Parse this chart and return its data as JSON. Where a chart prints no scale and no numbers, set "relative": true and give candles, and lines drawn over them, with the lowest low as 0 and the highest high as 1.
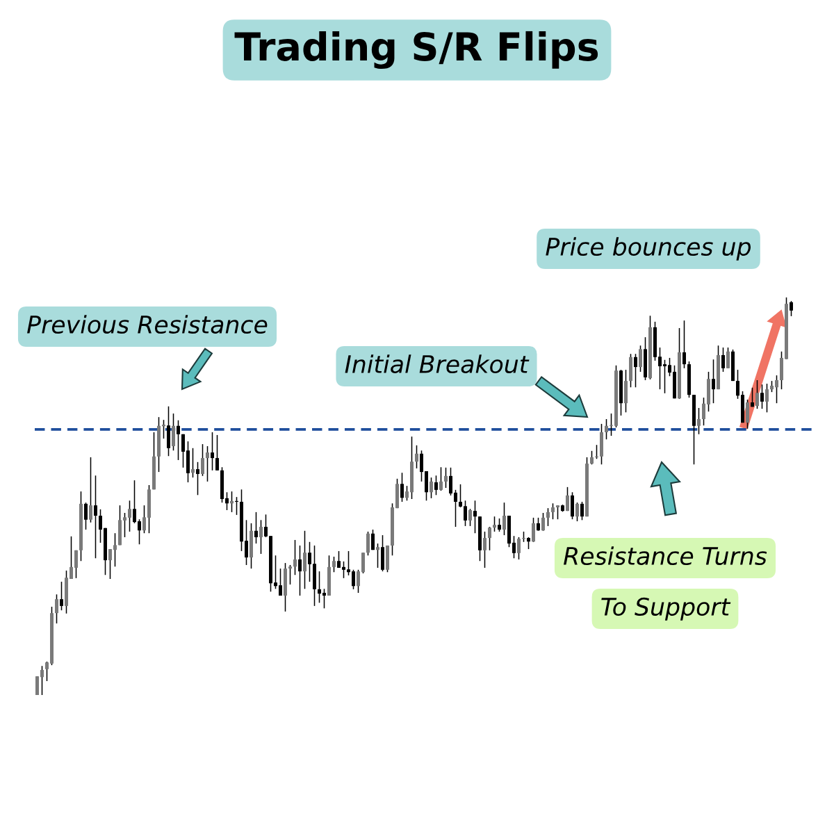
{
  "chart_data": {
    "type": "candlestick",
    "title": "Trading S/R Flips",
    "relative": true,
    "annotations": [
      "Previous Resistance",
      "Initial Breakout",
      "Price bounces up",
      "Resistance Turns",
      "To Support"
    ],
    "ref_lines": [
      {
        "axis": "y",
        "value": 0.668,
        "color": "#1f4e9c",
        "line_style": "dashed"
      }
    ],
    "categories": [
      null,
      null,
      null,
      null,
      null,
      null,
      null,
      null,
      null,
      null,
      null,
      null,
      null,
      null,
      null,
      null,
      null,
      null,
      null,
      null,
      null,
      null,
      null,
      null,
      null,
      null,
      null,
      null,
      null,
      null,
      null,
      null,
      null,
      null,
      null,
      null,
      null,
      null,
      null,
      null,
      null,
      null,
      null,
      null,
      null,
      null,
      null,
      null,
      null,
      null,
      null,
      null,
      null,
      null,
      null,
      null,
      null,
      null,
      null,
      null,
      null,
      null,
      null,
      null,
      null,
      null,
      null,
      null,
      null,
      null,
      null,
      null,
      null,
      null,
      null,
      null,
      null,
      null,
      null,
      null,
      null,
      null,
      null,
      null,
      null,
      null,
      null,
      null,
      null,
      null,
      null,
      null,
      null,
      null,
      null,
      null,
      null,
      null,
      null,
      null,
      null,
      null,
      null,
      null,
      null,
      null,
      null,
      null,
      null,
      null,
      null,
      null,
      null,
      null,
      null,
      null,
      null,
      null,
      null,
      null,
      null,
      null,
      null,
      null,
      null,
      null,
      null,
      null,
      null,
      null,
      null,
      null,
      null,
      null,
      null,
      null,
      null,
      null,
      null,
      null,
      null,
      null,
      null,
      null,
      null,
      null,
      null,
      null,
      null,
      null,
      null,
      null,
      null,
      null,
      null,
      null
    ],
    "ohlc": [
      [
        0.0,
        0.047,
        0.0,
        0.047
      ],
      [
        0.045,
        0.073,
        0.0,
        0.063
      ],
      [
        0.065,
        0.084,
        0.035,
        0.082
      ],
      [
        0.079,
        0.222,
        0.075,
        0.206
      ],
      [
        0.206,
        0.253,
        0.18,
        0.241
      ],
      [
        0.241,
        0.285,
        0.213,
        0.224
      ],
      [
        0.224,
        0.313,
        0.205,
        0.295
      ],
      [
        0.292,
        0.399,
        0.292,
        0.322
      ],
      [
        0.32,
        0.364,
        0.294,
        0.364
      ],
      [
        0.364,
        0.512,
        0.337,
        0.481
      ],
      [
        0.481,
        0.484,
        0.416,
        0.441
      ],
      [
        0.441,
        0.598,
        0.434,
        0.477
      ],
      [
        0.477,
        0.552,
        0.344,
        0.451
      ],
      [
        0.451,
        0.467,
        0.383,
        0.416
      ],
      [
        0.42,
        0.42,
        0.302,
        0.339
      ],
      [
        0.339,
        0.367,
        0.292,
        0.367
      ],
      [
        0.365,
        0.407,
        0.323,
        0.377
      ],
      [
        0.377,
        0.477,
        0.377,
        0.44
      ],
      [
        0.439,
        0.458,
        0.397,
        0.447
      ],
      [
        0.446,
        0.489,
        0.411,
        0.468
      ],
      [
        0.468,
        0.54,
        0.432,
        0.435
      ],
      [
        0.437,
        0.442,
        0.379,
        0.414
      ],
      [
        0.414,
        0.477,
        0.407,
        0.447
      ],
      [
        0.446,
        0.528,
        0.407,
        0.517
      ],
      [
        0.517,
        0.661,
        0.517,
        0.6
      ],
      [
        0.6,
        0.699,
        0.561,
        0.677
      ],
      [
        0.676,
        0.692,
        0.645,
        0.68
      ],
      [
        0.678,
        0.726,
        0.601,
        0.621
      ],
      [
        0.626,
        0.708,
        0.615,
        0.677
      ],
      [
        0.677,
        0.691,
        0.591,
        0.656
      ],
      [
        0.656,
        0.656,
        0.572,
        0.612
      ],
      [
        0.615,
        0.638,
        0.535,
        0.558
      ],
      [
        0.559,
        0.621,
        0.547,
        0.568
      ],
      [
        0.568,
        0.586,
        0.503,
        0.556
      ],
      [
        0.556,
        0.631,
        0.551,
        0.596
      ],
      [
        0.596,
        0.626,
        0.537,
        0.61
      ],
      [
        0.61,
        0.661,
        0.565,
        0.596
      ],
      [
        0.596,
        0.654,
        0.565,
        0.565
      ],
      [
        0.565,
        0.573,
        0.484,
        0.493
      ],
      [
        0.495,
        0.51,
        0.465,
        0.482
      ],
      [
        0.482,
        0.512,
        0.46,
        0.488
      ],
      [
        0.488,
        0.498,
        0.453,
        0.486
      ],
      [
        0.486,
        0.517,
        0.362,
        0.386
      ],
      [
        0.388,
        0.44,
        0.327,
        0.346
      ],
      [
        0.346,
        0.432,
        0.318,
        0.413
      ],
      [
        0.413,
        0.46,
        0.381,
        0.397
      ],
      [
        0.397,
        0.44,
        0.355,
        0.423
      ],
      [
        0.423,
        0.454,
        0.397,
        0.399
      ],
      [
        0.4,
        0.4,
        0.26,
        0.281
      ],
      [
        0.283,
        0.351,
        0.267,
        0.274
      ],
      [
        0.276,
        0.318,
        0.25,
        0.25
      ],
      [
        0.25,
        0.332,
        0.21,
        0.318
      ],
      [
        0.318,
        0.327,
        0.278,
        0.323
      ],
      [
        0.323,
        0.39,
        0.302,
        0.341
      ],
      [
        0.341,
        0.376,
        0.25,
        0.311
      ],
      [
        0.311,
        0.413,
        0.267,
        0.358
      ],
      [
        0.358,
        0.385,
        0.285,
        0.329
      ],
      [
        0.33,
        0.376,
        0.224,
        0.266
      ],
      [
        0.266,
        0.311,
        0.232,
        0.255
      ],
      [
        0.257,
        0.267,
        0.218,
        0.25
      ],
      [
        0.25,
        0.351,
        0.25,
        0.322
      ],
      [
        0.322,
        0.348,
        0.309,
        0.337
      ],
      [
        0.337,
        0.362,
        0.32,
        0.32
      ],
      [
        0.322,
        0.336,
        0.294,
        0.315
      ],
      [
        0.316,
        0.362,
        0.301,
        0.309
      ],
      [
        0.311,
        0.315,
        0.266,
        0.274
      ],
      [
        0.274,
        0.315,
        0.257,
        0.311
      ],
      [
        0.309,
        0.358,
        0.306,
        0.358
      ],
      [
        0.358,
        0.411,
        0.351,
        0.406
      ],
      [
        0.406,
        0.416,
        0.365,
        0.365
      ],
      [
        0.365,
        0.381,
        0.32,
        0.372
      ],
      [
        0.372,
        0.402,
        0.311,
        0.315
      ],
      [
        0.315,
        0.376,
        0.309,
        0.376
      ],
      [
        0.376,
        0.482,
        0.351,
        0.472
      ],
      [
        0.47,
        0.544,
        0.47,
        0.531
      ],
      [
        0.531,
        0.559,
        0.486,
        0.496
      ],
      [
        0.496,
        0.526,
        0.489,
        0.512
      ],
      [
        0.51,
        0.65,
        0.493,
        0.587
      ],
      [
        0.587,
        0.628,
        0.57,
        0.607
      ],
      [
        0.607,
        0.615,
        0.537,
        0.561
      ],
      [
        0.563,
        0.563,
        0.489,
        0.51
      ],
      [
        0.51,
        0.547,
        0.495,
        0.537
      ],
      [
        0.535,
        0.552,
        0.503,
        0.516
      ],
      [
        0.516,
        0.573,
        0.514,
        0.537
      ],
      [
        0.537,
        0.572,
        0.521,
        0.551
      ],
      [
        0.551,
        0.572,
        0.502,
        0.507
      ],
      [
        0.509,
        0.516,
        0.423,
        0.486
      ],
      [
        0.486,
        0.53,
        0.472,
        0.474
      ],
      [
        0.475,
        0.489,
        0.425,
        0.439
      ],
      [
        0.439,
        0.468,
        0.425,
        0.465
      ],
      [
        0.463,
        0.489,
        0.407,
        0.449
      ],
      [
        0.449,
        0.449,
        0.337,
        0.364
      ],
      [
        0.364,
        0.411,
        0.32,
        0.395
      ],
      [
        0.395,
        0.423,
        0.364,
        0.421
      ],
      [
        0.421,
        0.449,
        0.411,
        0.428
      ],
      [
        0.428,
        0.444,
        0.411,
        0.416
      ],
      [
        0.416,
        0.484,
        0.402,
        0.451
      ],
      [
        0.451,
        0.451,
        0.372,
        0.381
      ],
      [
        0.383,
        0.4,
        0.344,
        0.357
      ],
      [
        0.357,
        0.397,
        0.341,
        0.393
      ],
      [
        0.393,
        0.411,
        0.385,
        0.395
      ],
      [
        0.395,
        0.397,
        0.367,
        0.386
      ],
      [
        0.386,
        0.446,
        0.385,
        0.432
      ],
      [
        0.432,
        0.446,
        0.413,
        0.414
      ],
      [
        0.414,
        0.458,
        0.413,
        0.446
      ],
      [
        0.446,
        0.47,
        0.425,
        0.46
      ],
      [
        0.46,
        0.482,
        0.442,
        0.472
      ],
      [
        0.472,
        0.477,
        0.442,
        0.477
      ],
      [
        0.477,
        0.479,
        0.461,
        0.463
      ],
      [
        0.463,
        0.523,
        0.463,
        0.502
      ],
      [
        0.502,
        0.51,
        0.442,
        0.449
      ],
      [
        0.449,
        0.484,
        0.437,
        0.481
      ],
      [
        0.481,
        0.486,
        0.44,
        0.449
      ],
      [
        0.449,
        0.598,
        0.449,
        0.582
      ],
      [
        0.582,
        0.614,
        0.58,
        0.598
      ],
      [
        0.598,
        0.629,
        0.594,
        0.6
      ],
      [
        0.6,
        0.682,
        0.58,
        0.661
      ],
      [
        0.661,
        0.694,
        0.643,
        0.677
      ],
      [
        0.677,
        0.708,
        0.652,
        0.677
      ],
      [
        0.677,
        0.829,
        0.673,
        0.816
      ],
      [
        0.816,
        0.818,
        0.703,
        0.734
      ],
      [
        0.734,
        0.818,
        0.711,
        0.79
      ],
      [
        0.79,
        0.858,
        0.774,
        0.85
      ],
      [
        0.85,
        0.858,
        0.774,
        0.825
      ],
      [
        0.825,
        0.879,
        0.813,
        0.87
      ],
      [
        0.87,
        0.9,
        0.792,
        0.799
      ],
      [
        0.797,
        0.954,
        0.794,
        0.925
      ],
      [
        0.925,
        0.939,
        0.841,
        0.85
      ],
      [
        0.851,
        0.874,
        0.769,
        0.827
      ],
      [
        0.832,
        0.843,
        0.759,
        0.827
      ],
      [
        0.83,
        0.848,
        0.802,
        0.811
      ],
      [
        0.813,
        0.829,
        0.746,
        0.746
      ],
      [
        0.746,
        0.923,
        0.745,
        0.862
      ],
      [
        0.862,
        0.942,
        0.822,
        0.832
      ],
      [
        0.832,
        0.839,
        0.748,
        0.755
      ],
      [
        0.755,
        0.755,
        0.58,
        0.677
      ],
      [
        0.677,
        0.722,
        0.656,
        0.694
      ],
      [
        0.694,
        0.748,
        0.678,
        0.733
      ],
      [
        0.731,
        0.813,
        0.713,
        0.795
      ],
      [
        0.795,
        0.844,
        0.734,
        0.769
      ],
      [
        0.769,
        0.879,
        0.769,
        0.855
      ],
      [
        0.855,
        0.874,
        0.813,
        0.822
      ],
      [
        0.822,
        0.874,
        0.822,
        0.864
      ],
      [
        0.864,
        0.869,
        0.79,
        0.79
      ],
      [
        0.79,
        0.818,
        0.745,
        0.753
      ],
      [
        0.755,
        0.764,
        0.685,
        0.685
      ],
      [
        0.685,
        0.743,
        0.67,
        0.736
      ],
      [
        0.736,
        0.773,
        0.725,
        0.725
      ],
      [
        0.727,
        0.792,
        0.72,
        0.76
      ],
      [
        0.76,
        0.781,
        0.72,
        0.738
      ],
      [
        0.738,
        0.783,
        0.711,
        0.769
      ],
      [
        0.769,
        0.79,
        0.762,
        0.778
      ],
      [
        0.774,
        0.804,
        0.734,
        0.792
      ],
      [
        0.792,
        0.864,
        0.769,
        0.848
      ],
      [
        0.845,
        1.0,
        0.845,
        0.984
      ],
      [
        0.988,
        0.991,
        0.953,
        0.967
      ]
    ]
  }
}
